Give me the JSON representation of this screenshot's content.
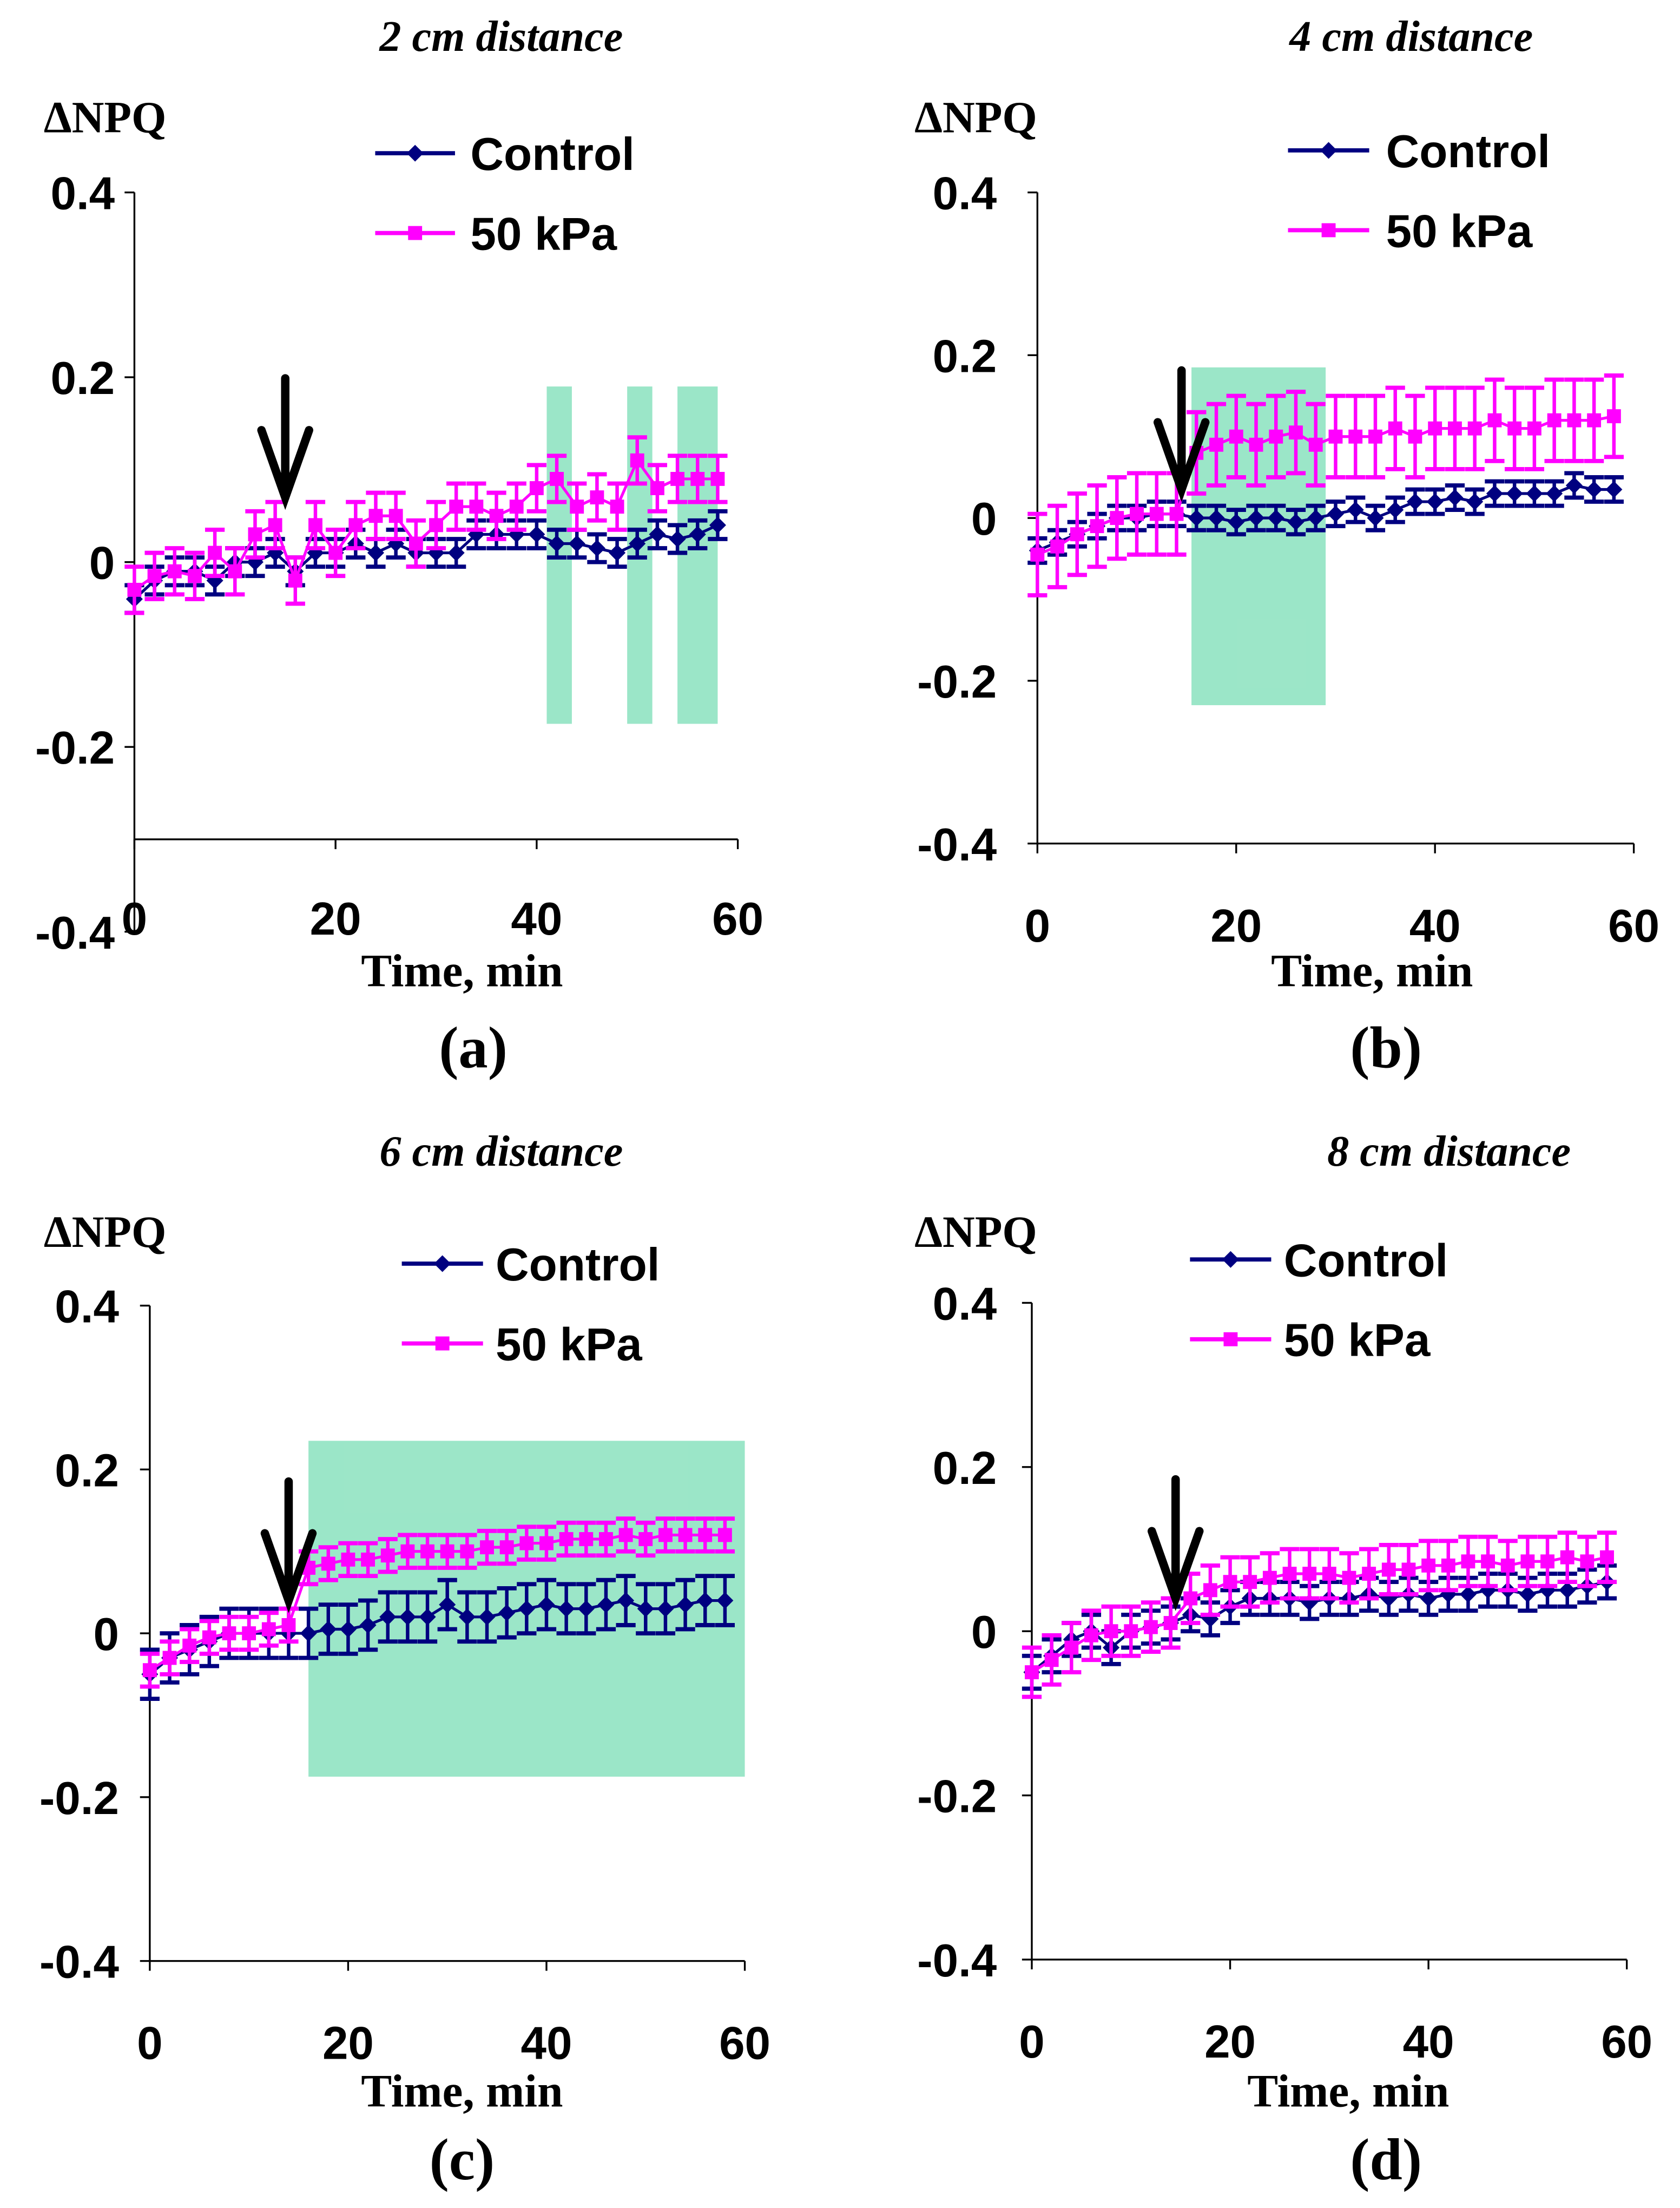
{
  "colors": {
    "control": "#000080",
    "kpa": "#ff00ff",
    "shade": "#66d9aa",
    "arrow": "#000000"
  },
  "chart_data": [
    {
      "type": "line",
      "panel_label": "(a)",
      "title": "2 cm distance",
      "xlabel": "Time, min",
      "ylabel": "ΔNPQ",
      "xlim": [
        0,
        60
      ],
      "ylim": [
        -0.4,
        0.4
      ],
      "x_axis_at": -0.3,
      "xticks": [
        0,
        20,
        40,
        60
      ],
      "xtick_labels": [
        "0",
        "20",
        "40",
        "60"
      ],
      "yticks": [
        0.4,
        0.2,
        0,
        -0.2,
        -0.4
      ],
      "ytick_labels": [
        "0.4",
        "0.2",
        "0",
        "-0.2",
        "-0.4"
      ],
      "legend": [
        "Control",
        "50 kPa"
      ],
      "legend_position": "top-right",
      "arrow_at_time": 15,
      "shaded_regions": [
        {
          "x": [
            41,
            43.5
          ],
          "y": [
            -0.175,
            0.19
          ]
        },
        {
          "x": [
            49,
            51.5
          ],
          "y": [
            -0.175,
            0.19
          ]
        },
        {
          "x": [
            54,
            58
          ],
          "y": [
            -0.175,
            0.19
          ]
        }
      ],
      "x": [
        0,
        2,
        4,
        6,
        8,
        10,
        12,
        14,
        16,
        18,
        20,
        22,
        24,
        26,
        28,
        30,
        32,
        34,
        36,
        38,
        40,
        42,
        44,
        46,
        48,
        50,
        52,
        54,
        56,
        58
      ],
      "series": [
        {
          "name": "Control",
          "marker": "diamond",
          "error": 0.015,
          "values": [
            -0.04,
            -0.02,
            -0.01,
            -0.01,
            -0.02,
            0,
            0,
            0.01,
            -0.01,
            0.01,
            0.01,
            0.02,
            0.01,
            0.02,
            0.01,
            0.01,
            0.01,
            0.03,
            0.03,
            0.03,
            0.03,
            0.02,
            0.02,
            0.015,
            0.01,
            0.02,
            0.03,
            0.025,
            0.03,
            0.04
          ]
        },
        {
          "name": "50 kPa",
          "marker": "square",
          "error": 0.025,
          "values": [
            -0.03,
            -0.015,
            -0.01,
            -0.015,
            0.01,
            -0.01,
            0.03,
            0.04,
            -0.02,
            0.04,
            0.01,
            0.04,
            0.05,
            0.05,
            0.02,
            0.04,
            0.06,
            0.06,
            0.05,
            0.06,
            0.08,
            0.09,
            0.06,
            0.07,
            0.06,
            0.11,
            0.08,
            0.09,
            0.09,
            0.09
          ]
        }
      ]
    },
    {
      "type": "line",
      "panel_label": "(b)",
      "title": "4 cm distance",
      "xlabel": "Time, min",
      "ylabel": "ΔNPQ",
      "xlim": [
        0,
        60
      ],
      "ylim": [
        -0.4,
        0.4
      ],
      "x_axis_at": -0.4,
      "xticks": [
        0,
        20,
        40,
        60
      ],
      "xtick_labels": [
        "0",
        "20",
        "40",
        "60"
      ],
      "yticks": [
        0.4,
        0.2,
        0,
        -0.2,
        -0.4
      ],
      "ytick_labels": [
        "0.4",
        "0.2",
        "0",
        "-0.2",
        "-0.4"
      ],
      "legend": [
        "Control",
        "50 kPa"
      ],
      "legend_position": "top-right",
      "arrow_at_time": 14.5,
      "shaded_regions": [
        {
          "x": [
            15.5,
            29
          ],
          "y": [
            -0.23,
            0.185
          ]
        }
      ],
      "x": [
        0,
        2,
        4,
        6,
        8,
        10,
        12,
        14,
        16,
        18,
        20,
        22,
        24,
        26,
        28,
        30,
        32,
        34,
        36,
        38,
        40,
        42,
        44,
        46,
        48,
        50,
        52,
        54,
        56,
        58
      ],
      "series": [
        {
          "name": "Control",
          "marker": "diamond",
          "error": 0.015,
          "values": [
            -0.04,
            -0.03,
            -0.02,
            -0.01,
            0,
            0,
            0.005,
            0.005,
            0,
            0,
            -0.005,
            0,
            0,
            -0.005,
            0,
            0.005,
            0.01,
            0,
            0.01,
            0.02,
            0.02,
            0.025,
            0.02,
            0.03,
            0.03,
            0.03,
            0.03,
            0.04,
            0.035,
            0.035
          ]
        },
        {
          "name": "50 kPa",
          "marker": "square",
          "error": 0.05,
          "values": [
            -0.045,
            -0.035,
            -0.02,
            -0.01,
            0,
            0.005,
            0.005,
            0.005,
            0.08,
            0.09,
            0.1,
            0.09,
            0.1,
            0.105,
            0.09,
            0.1,
            0.1,
            0.1,
            0.11,
            0.1,
            0.11,
            0.11,
            0.11,
            0.12,
            0.11,
            0.11,
            0.12,
            0.12,
            0.12,
            0.125
          ]
        }
      ]
    },
    {
      "type": "line",
      "panel_label": "(c)",
      "title": "6 cm distance",
      "xlabel": "Time, min",
      "ylabel": "ΔNPQ",
      "xlim": [
        0,
        60
      ],
      "ylim": [
        -0.4,
        0.4
      ],
      "x_axis_at": -0.4,
      "xticks": [
        0,
        20,
        40,
        60
      ],
      "xtick_labels": [
        "0",
        "20",
        "40",
        "60"
      ],
      "yticks": [
        0.4,
        0.2,
        0,
        -0.2,
        -0.4
      ],
      "ytick_labels": [
        "0.4",
        "0.2",
        "0",
        "-0.2",
        "-0.4"
      ],
      "legend": [
        "Control",
        "50 kPa"
      ],
      "legend_position": "top-right",
      "arrow_at_time": 14,
      "shaded_regions": [
        {
          "x": [
            16,
            60
          ],
          "y": [
            -0.175,
            0.235
          ]
        }
      ],
      "x": [
        0,
        2,
        4,
        6,
        8,
        10,
        12,
        14,
        16,
        18,
        20,
        22,
        24,
        26,
        28,
        30,
        32,
        34,
        36,
        38,
        40,
        42,
        44,
        46,
        48,
        50,
        52,
        54,
        56,
        58
      ],
      "series": [
        {
          "name": "Control",
          "marker": "diamond",
          "error": 0.03,
          "values": [
            -0.05,
            -0.03,
            -0.02,
            -0.01,
            0,
            0,
            0,
            0,
            0,
            0.005,
            0.005,
            0.01,
            0.02,
            0.02,
            0.02,
            0.035,
            0.02,
            0.02,
            0.025,
            0.03,
            0.035,
            0.03,
            0.03,
            0.035,
            0.04,
            0.03,
            0.03,
            0.035,
            0.04,
            0.04
          ]
        },
        {
          "name": "50 kPa",
          "marker": "square",
          "error": 0.02,
          "values": [
            -0.045,
            -0.03,
            -0.015,
            -0.005,
            0,
            0,
            0.005,
            0.01,
            0.08,
            0.085,
            0.09,
            0.09,
            0.095,
            0.1,
            0.1,
            0.1,
            0.1,
            0.105,
            0.105,
            0.11,
            0.11,
            0.115,
            0.115,
            0.115,
            0.12,
            0.115,
            0.12,
            0.12,
            0.12,
            0.12
          ]
        }
      ]
    },
    {
      "type": "line",
      "panel_label": "(d)",
      "title": "8 cm distance",
      "xlabel": "Time, min",
      "ylabel": "ΔNPQ",
      "xlim": [
        0,
        60
      ],
      "ylim": [
        -0.4,
        0.4
      ],
      "x_axis_at": -0.4,
      "xticks": [
        0,
        20,
        40,
        60
      ],
      "xtick_labels": [
        "0",
        "20",
        "40",
        "60"
      ],
      "yticks": [
        0.4,
        0.2,
        0,
        -0.2,
        -0.4
      ],
      "ytick_labels": [
        "0.4",
        "0.2",
        "0",
        "-0.2",
        "-0.4"
      ],
      "legend": [
        "Control",
        "50 kPa"
      ],
      "legend_position": "top-right",
      "arrow_at_time": 14.5,
      "shaded_regions": [],
      "x": [
        0,
        2,
        4,
        6,
        8,
        10,
        12,
        14,
        16,
        18,
        20,
        22,
        24,
        26,
        28,
        30,
        32,
        34,
        36,
        38,
        40,
        42,
        44,
        46,
        48,
        50,
        52,
        54,
        56,
        58
      ],
      "series": [
        {
          "name": "Control",
          "marker": "diamond",
          "error": 0.02,
          "values": [
            -0.05,
            -0.03,
            -0.01,
            0,
            -0.02,
            0,
            0.005,
            0.01,
            0.02,
            0.015,
            0.03,
            0.04,
            0.04,
            0.04,
            0.035,
            0.04,
            0.04,
            0.045,
            0.04,
            0.045,
            0.04,
            0.045,
            0.045,
            0.05,
            0.05,
            0.045,
            0.05,
            0.05,
            0.055,
            0.06
          ]
        },
        {
          "name": "50 kPa",
          "marker": "square",
          "error": 0.03,
          "values": [
            -0.05,
            -0.035,
            -0.02,
            -0.005,
            0,
            0,
            0.005,
            0.01,
            0.04,
            0.05,
            0.06,
            0.06,
            0.065,
            0.07,
            0.07,
            0.07,
            0.065,
            0.07,
            0.075,
            0.075,
            0.08,
            0.08,
            0.085,
            0.085,
            0.08,
            0.085,
            0.085,
            0.09,
            0.085,
            0.09
          ]
        }
      ]
    }
  ]
}
